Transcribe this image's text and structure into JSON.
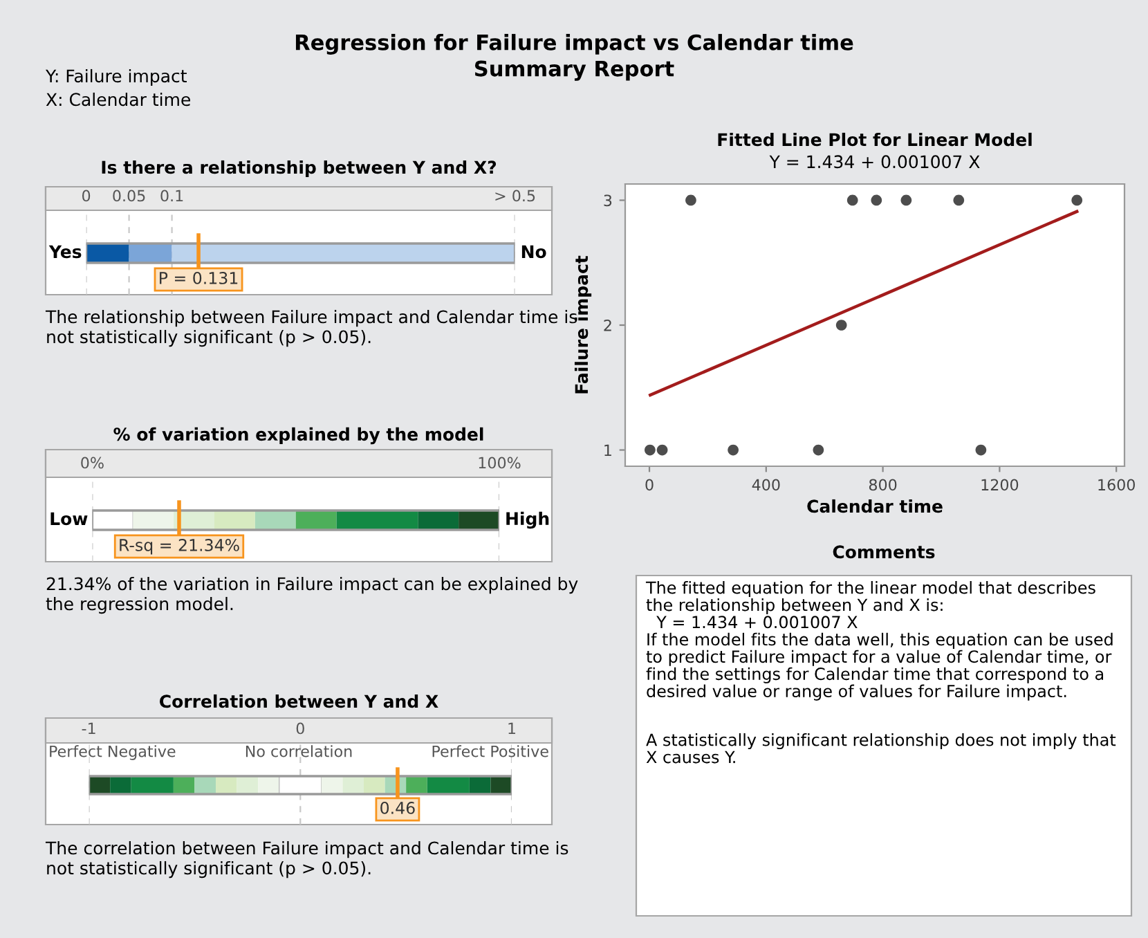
{
  "chart_data": [
    {
      "type": "other",
      "title": "Regression for Failure impact vs Calendar time",
      "subtitle": "Summary Report",
      "annotations": [
        "Y: Failure impact",
        "X: Calendar time"
      ]
    },
    {
      "type": "bar",
      "orientation": "horizontal",
      "stacked": true,
      "title": "Is there a relationship between Y and X?",
      "categories": [
        null
      ],
      "xlim": [
        0,
        0.5
      ],
      "xticks": [
        0,
        0.05,
        0.1,
        {
          "value": 0.5,
          "label": "> 0.5"
        }
      ],
      "grid": "x",
      "series": [
        {
          "color": "#0a59a5",
          "values": [
            0.05
          ]
        },
        {
          "color": "#7ba5d8",
          "values": [
            0.05
          ]
        },
        {
          "color": "#bcd3ed",
          "values": [
            0.4
          ]
        }
      ],
      "ref_lines": [
        {
          "axis": "x",
          "value": 0.131,
          "label": "P = 0.131",
          "color": "#f7941d"
        }
      ],
      "annotations": [
        "Yes",
        "No",
        "The relationship between Failure impact and Calendar time is\nnot statistically significant (p > 0.05)."
      ]
    },
    {
      "type": "bar",
      "orientation": "horizontal",
      "stacked": true,
      "title": "% of variation explained by the model",
      "categories": [
        null
      ],
      "xlim": [
        0,
        100
      ],
      "xticks": [
        {
          "value": 0,
          "label": "0%"
        },
        {
          "value": 100,
          "label": "100%"
        }
      ],
      "grid": "x",
      "series": [
        {
          "color": "#ffffff",
          "values": [
            10
          ]
        },
        {
          "color": "#eef5ea",
          "values": [
            10
          ]
        },
        {
          "color": "#dfefd6",
          "values": [
            10
          ]
        },
        {
          "color": "#d7eac0",
          "values": [
            10
          ]
        },
        {
          "color": "#a8d8b9",
          "values": [
            10
          ]
        },
        {
          "color": "#4daf5a",
          "values": [
            10
          ]
        },
        {
          "color": "#138a44",
          "values": [
            20
          ]
        },
        {
          "color": "#0b6b38",
          "values": [
            10
          ]
        },
        {
          "color": "#1d4a25",
          "values": [
            10
          ]
        }
      ],
      "ref_lines": [
        {
          "axis": "x",
          "value": 21.34,
          "label": "R-sq = 21.34%",
          "color": "#f7941d"
        }
      ],
      "annotations": [
        "Low",
        "High",
        "21.34% of the variation in Failure impact can be explained by\nthe regression model."
      ]
    },
    {
      "type": "bar",
      "orientation": "horizontal",
      "title": "Correlation between Y and X",
      "categories": [
        null
      ],
      "xlim": [
        -1,
        1
      ],
      "xticks": [
        {
          "value": -1,
          "label": "-1"
        },
        0,
        1
      ],
      "grid": "x",
      "series": [
        {
          "color": "#1d4a25",
          "base": [
            -1
          ],
          "values": [
            0.1
          ]
        },
        {
          "color": "#0b6b38",
          "base": [
            -0.9
          ],
          "values": [
            0.1
          ]
        },
        {
          "color": "#138a44",
          "base": [
            -0.8
          ],
          "values": [
            0.2
          ]
        },
        {
          "color": "#4daf5a",
          "base": [
            -0.6
          ],
          "values": [
            0.1
          ]
        },
        {
          "color": "#a8d8b9",
          "base": [
            -0.5
          ],
          "values": [
            0.1
          ]
        },
        {
          "color": "#d7eac0",
          "base": [
            -0.4
          ],
          "values": [
            0.1
          ]
        },
        {
          "color": "#dfefd6",
          "base": [
            -0.3
          ],
          "values": [
            0.1
          ]
        },
        {
          "color": "#eef5ea",
          "base": [
            -0.2
          ],
          "values": [
            0.1
          ]
        },
        {
          "color": "#ffffff",
          "base": [
            -0.1
          ],
          "values": [
            0.2
          ]
        },
        {
          "color": "#eef5ea",
          "base": [
            0.1
          ],
          "values": [
            0.1
          ]
        },
        {
          "color": "#dfefd6",
          "base": [
            0.2
          ],
          "values": [
            0.1
          ]
        },
        {
          "color": "#d7eac0",
          "base": [
            0.3
          ],
          "values": [
            0.1
          ]
        },
        {
          "color": "#a8d8b9",
          "base": [
            0.4
          ],
          "values": [
            0.1
          ]
        },
        {
          "color": "#4daf5a",
          "base": [
            0.5
          ],
          "values": [
            0.1
          ]
        },
        {
          "color": "#138a44",
          "base": [
            0.6
          ],
          "values": [
            0.2
          ]
        },
        {
          "color": "#0b6b38",
          "base": [
            0.8
          ],
          "values": [
            0.1
          ]
        },
        {
          "color": "#1d4a25",
          "base": [
            0.9
          ],
          "values": [
            0.1
          ]
        }
      ],
      "ref_lines": [
        {
          "axis": "x",
          "value": 0.46,
          "label": "0.46",
          "color": "#f7941d"
        }
      ],
      "annotations": [
        "Perfect Negative",
        "No correlation",
        "Perfect Positive",
        "The correlation between Failure impact and Calendar time is\nnot statistically significant (p > 0.05)."
      ]
    },
    {
      "type": "scatter",
      "title": "Fitted Line Plot for Linear Model",
      "subtitle": "Y = 1.434 + 0.001007 X",
      "xlabel": "Calendar time",
      "ylabel": "Failure impact",
      "xlim": [
        -83,
        1628
      ],
      "ylim": [
        0.87,
        3.13
      ],
      "xticks": [
        0,
        400,
        800,
        1200,
        1600
      ],
      "yticks": [
        1,
        2,
        3
      ],
      "grid": false,
      "series": [
        {
          "type": "scatter",
          "marker": "circle",
          "color": "#4d4d4d",
          "x": [
            2,
            44,
            142,
            287,
            579,
            658,
            696,
            778,
            880,
            1060,
            1136,
            1465
          ],
          "values": [
            1,
            1,
            3,
            1,
            1,
            2,
            3,
            3,
            3,
            3,
            1,
            3
          ]
        },
        {
          "type": "line",
          "color": "#a31c1c",
          "line_style": "solid",
          "x": [
            3,
            1465
          ],
          "values": [
            1.44,
            2.91
          ]
        }
      ]
    },
    {
      "type": "other",
      "title": "Comments",
      "annotations": [
        "The fitted equation for the linear model that describes\nthe relationship between Y and X is:\n  Y = 1.434 + 0.001007 X\nIf the model fits the data well, this equation can be used\nto predict Failure impact for a value of Calendar time, or\nfind the settings for Calendar time that correspond to a\ndesired value or range of values for Failure impact.",
        "A statistically significant relationship does not imply that\nX causes Y."
      ]
    }
  ]
}
